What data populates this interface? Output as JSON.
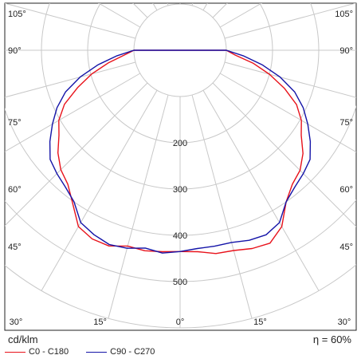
{
  "chart_data": {
    "type": "polar",
    "unit_label": "cd/klm",
    "efficiency_label": "η = 60%",
    "radial_ticks": [
      200,
      300,
      400,
      500
    ],
    "radial_max": 600,
    "angle_labels_side": [
      "90°",
      "75°",
      "60°",
      "45°"
    ],
    "angle_labels_top": [
      "105°",
      "90°"
    ],
    "angle_labels_bottom": [
      "30°",
      "15°",
      "0°",
      "15°",
      "30°"
    ],
    "grid": true,
    "legend_position": "bottom-left",
    "series": [
      {
        "name": "C0 - C180",
        "color": "#e8121b",
        "angles": [
          0,
          5,
          10,
          15,
          20,
          25,
          30,
          35,
          40,
          45,
          50,
          55,
          60,
          65,
          70,
          75,
          80,
          85,
          90
        ],
        "values": [
          435,
          437,
          446,
          448,
          456,
          460,
          440,
          400,
          378,
          367,
          347,
          320,
          303,
          278,
          240,
          200,
          160,
          120,
          100
        ],
        "left_values": [
          435,
          437,
          440,
          438,
          450,
          450,
          440,
          405,
          378,
          365,
          345,
          320,
          303,
          276,
          236,
          198,
          158,
          122,
          100
        ]
      },
      {
        "name": "C90 - C270",
        "color": "#1414a8",
        "angles": [
          0,
          5,
          10,
          15,
          20,
          25,
          30,
          35,
          40,
          45,
          50,
          55,
          60,
          65,
          70,
          75,
          80,
          85,
          90
        ],
        "values": [
          435,
          430,
          430,
          430,
          437,
          440,
          430,
          400,
          386,
          377,
          367,
          344,
          319,
          294,
          264,
          224,
          180,
          137,
          100
        ],
        "left_values": [
          435,
          440,
          434,
          443,
          447,
          440,
          430,
          400,
          386,
          377,
          367,
          344,
          319,
          294,
          264,
          224,
          180,
          137,
          100
        ]
      }
    ]
  }
}
